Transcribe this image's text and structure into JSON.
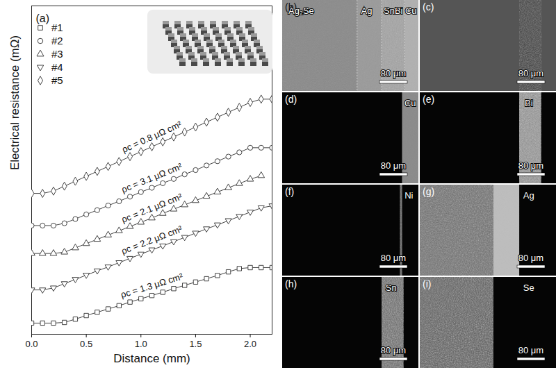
{
  "chart_data": {
    "type": "line",
    "title": "(a)",
    "x_label": "Distance (mm)",
    "y_label": "Electrical resistance (mΩ)",
    "x": [
      0.0,
      0.1,
      0.2,
      0.3,
      0.4,
      0.5,
      0.6,
      0.7,
      0.8,
      0.9,
      1.0,
      1.1,
      1.2,
      1.3,
      1.4,
      1.5,
      1.6,
      1.7,
      1.8,
      1.9,
      2.0,
      2.1,
      2.2
    ],
    "xlim": [
      0,
      2.2
    ],
    "xticks": [
      {
        "value": 0,
        "label": "0.0"
      },
      {
        "value": 0.5,
        "label": "0.5"
      },
      {
        "value": 1,
        "label": "1.0"
      },
      {
        "value": 1.5,
        "label": "1.5"
      },
      {
        "value": 2,
        "label": "2.0"
      }
    ],
    "ylim": [
      0,
      10
    ],
    "yticks": [],
    "tick_labels": "x",
    "legend": "top-left",
    "series": [
      {
        "name": "#1",
        "color": "#444444",
        "marker": "square",
        "line_style": "solid",
        "annotation": "ρc = 1.3 μΩ cm²",
        "values": [
          0.34,
          0.34,
          0.34,
          0.36,
          0.46,
          0.57,
          0.67,
          0.77,
          0.87,
          0.98,
          1.08,
          1.18,
          1.28,
          1.39,
          1.49,
          1.59,
          1.69,
          1.79,
          1.9,
          2.0,
          2.03,
          2.03,
          2.03
        ]
      },
      {
        "name": "#2",
        "color": "#444444",
        "marker": "circle",
        "line_style": "solid",
        "annotation": "ρc = 3.1 μΩ cm²",
        "values": [
          3.31,
          3.31,
          3.31,
          3.38,
          3.51,
          3.65,
          3.78,
          3.92,
          4.05,
          4.19,
          4.33,
          4.46,
          4.6,
          4.73,
          4.87,
          5.0,
          5.14,
          5.27,
          5.41,
          5.54,
          5.68,
          5.68,
          5.68
        ]
      },
      {
        "name": "#3",
        "color": "#444444",
        "marker": "triangle",
        "line_style": "solid",
        "annotation": "ρc = 2.1 μΩ cm²",
        "values": [
          2.46,
          2.46,
          2.46,
          2.5,
          2.63,
          2.76,
          2.89,
          3.02,
          3.15,
          3.28,
          3.41,
          3.54,
          3.68,
          3.81,
          3.94,
          4.07,
          4.2,
          4.33,
          4.46,
          4.59,
          4.72,
          4.83,
          null
        ]
      },
      {
        "name": "#4",
        "color": "#444444",
        "marker": "triangle-down",
        "line_style": "solid",
        "annotation": "ρc = 2.2 μΩ cm²",
        "values": [
          1.35,
          1.35,
          1.41,
          1.54,
          1.67,
          1.8,
          1.93,
          2.05,
          2.18,
          2.31,
          2.44,
          2.57,
          2.69,
          2.82,
          2.95,
          3.08,
          3.21,
          3.33,
          3.46,
          3.59,
          3.72,
          3.85,
          3.91
        ]
      },
      {
        "name": "#5",
        "color": "#444444",
        "marker": "diamond",
        "line_style": "solid",
        "annotation": "ρc = 0.8 μΩ cm²",
        "values": [
          4.29,
          4.29,
          4.36,
          4.51,
          4.66,
          4.81,
          4.96,
          5.11,
          5.26,
          5.41,
          5.56,
          5.71,
          5.86,
          6.01,
          6.16,
          6.31,
          6.46,
          6.61,
          6.76,
          6.91,
          7.06,
          7.16,
          7.16
        ]
      }
    ]
  },
  "micrographs": [
    {
      "panel": "(b)",
      "labels": [
        "Ag₂Se",
        "Ag",
        "SnBi",
        "Cu"
      ],
      "scale_bar": "80 μm"
    },
    {
      "panel": "(c)",
      "scale_bar": "80 μm"
    },
    {
      "panel": "(d)",
      "labels": [
        "Cu"
      ],
      "scale_bar": "80 μm"
    },
    {
      "panel": "(e)",
      "labels": [
        "Bi"
      ],
      "scale_bar": "80 μm"
    },
    {
      "panel": "(f)",
      "labels": [
        "Ni"
      ],
      "scale_bar": "80 μm"
    },
    {
      "panel": "(g)",
      "labels": [
        "Ag"
      ],
      "scale_bar": "80 μm"
    },
    {
      "panel": "(h)",
      "labels": [
        "Sn"
      ],
      "scale_bar": "80 μm"
    },
    {
      "panel": "(i)",
      "labels": [
        "Se"
      ],
      "scale_bar": "80 μm"
    }
  ]
}
